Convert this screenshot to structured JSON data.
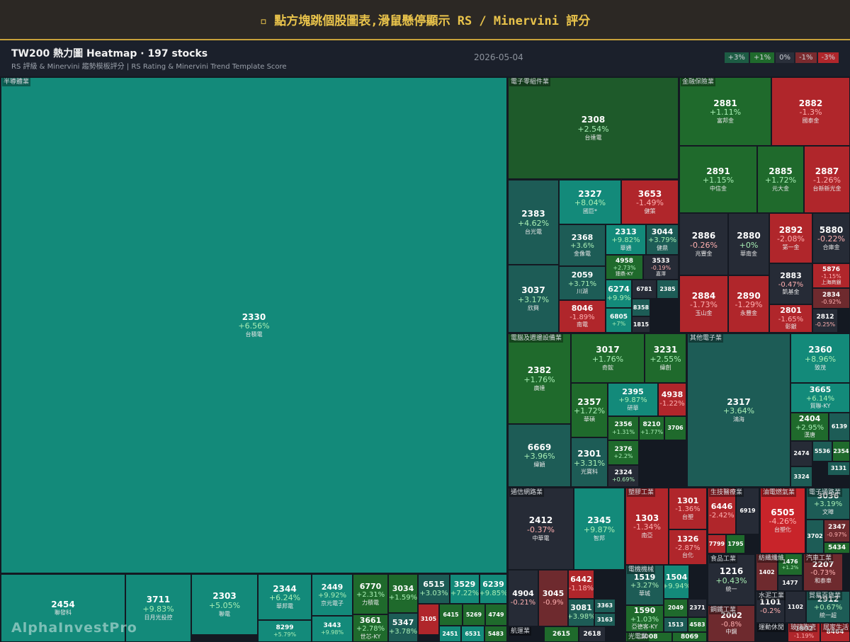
{
  "header": {
    "title": "▫ 點方塊跳個股圖表,滑鼠懸停顯示 RS / Minervini 評分"
  },
  "toolbar": {
    "title": "TW200 熱力圖 Heatmap · 197 stocks",
    "subtitle": "RS 評級 & Minervini 趨勢模板評分 | RS Rating & Minervini Trend Template Score",
    "date": "2026-05-04"
  },
  "legend": [
    {
      "label": "+3%",
      "color": "#1d5c44"
    },
    {
      "label": "+1%",
      "color": "#1f6a2c"
    },
    {
      "label": "0%",
      "color": "#2a2f3a"
    },
    {
      "label": "-1%",
      "color": "#7a2a2e"
    },
    {
      "label": "-3%",
      "color": "#b0262b"
    }
  ],
  "watermark": "AlphaInvestPro",
  "sectors": [
    {
      "name": "半導體業",
      "stocks": [
        {
          "code": "2330",
          "change": "+6.56%",
          "name": "台積電",
          "color": "#138a7a"
        },
        {
          "code": "2454",
          "name": "聯發科",
          "color": "#138a7a"
        },
        {
          "code": "3711",
          "change": "+9.83%",
          "name": "日月光投控",
          "color": "#138a7a"
        },
        {
          "code": "2303",
          "change": "+5.05%",
          "name": "聯電",
          "color": "#138a7a"
        },
        {
          "code": "2344",
          "change": "+6.24%",
          "name": "華邦電",
          "color": "#138a7a"
        },
        {
          "code": "8299",
          "change": "+5.79%",
          "color": "#138a7a"
        },
        {
          "code": "2449",
          "change": "+9.92%",
          "name": "京元電子",
          "color": "#138a7a"
        },
        {
          "code": "3443",
          "change": "+9.98%",
          "color": "#138a7a"
        },
        {
          "code": "6770",
          "change": "+2.31%",
          "name": "力積電",
          "color": "#1f6a2c"
        },
        {
          "code": "3661",
          "change": "+2.78%",
          "name": "世芯-KY",
          "color": "#1f6a2c"
        },
        {
          "code": "3034",
          "change": "+1.59%",
          "color": "#1f6a2c"
        },
        {
          "code": "5347",
          "change": "+3.78%",
          "color": "#1d5c56"
        },
        {
          "code": "6515",
          "change": "+3.03%",
          "color": "#1d5c56"
        },
        {
          "code": "3529",
          "change": "+7.22%",
          "color": "#138a7a"
        },
        {
          "code": "6239",
          "change": "+9.85%",
          "color": "#138a7a"
        },
        {
          "code": "3105",
          "color": "#b0262b"
        },
        {
          "code": "6415",
          "color": "#1f6a2c"
        },
        {
          "code": "5269",
          "color": "#1f6a2c"
        },
        {
          "code": "4749",
          "color": "#1f6a2c"
        },
        {
          "code": "2451",
          "color": "#138a7a"
        },
        {
          "code": "6531",
          "color": "#138a7a"
        },
        {
          "code": "5483",
          "color": "#1f6a2c"
        }
      ]
    },
    {
      "name": "電子零組件業",
      "stocks": [
        {
          "code": "2308",
          "change": "+2.54%",
          "name": "台達電",
          "color": "#1e5a2a"
        },
        {
          "code": "2383",
          "change": "+4.62%",
          "name": "台光電",
          "color": "#1d5c56"
        },
        {
          "code": "3037",
          "change": "+3.17%",
          "name": "欣興",
          "color": "#1d5c56"
        },
        {
          "code": "2327",
          "change": "+8.04%",
          "name": "國巨*",
          "color": "#138a7a"
        },
        {
          "code": "3653",
          "change": "-1.49%",
          "name": "健策",
          "color": "#b0262b"
        },
        {
          "code": "2368",
          "change": "+3.6%",
          "name": "金像電",
          "color": "#1d5c56"
        },
        {
          "code": "2059",
          "change": "+3.71%",
          "name": "川湖",
          "color": "#1d5c56"
        },
        {
          "code": "8046",
          "change": "-1.89%",
          "name": "南電",
          "color": "#b0262b"
        },
        {
          "code": "2313",
          "change": "+9.82%",
          "name": "華通",
          "color": "#138a7a"
        },
        {
          "code": "3044",
          "change": "+3.79%",
          "name": "健鼎",
          "color": "#1d5c56"
        },
        {
          "code": "4958",
          "change": "+2.73%",
          "name": "臻鼎-KY",
          "color": "#1f6a2c"
        },
        {
          "code": "3533",
          "change": "-0.19%",
          "name": "嘉澤",
          "color": "#262b36"
        },
        {
          "code": "6274",
          "change": "+9.9%",
          "color": "#138a7a"
        },
        {
          "code": "6781",
          "color": "#262b36"
        },
        {
          "code": "2385",
          "color": "#1d5c56"
        },
        {
          "code": "8358",
          "color": "#1d5c56"
        },
        {
          "code": "6805",
          "change": "+7%",
          "color": "#138a7a"
        },
        {
          "code": "1815",
          "color": "#262b36"
        }
      ]
    },
    {
      "name": "金融保險業",
      "stocks": [
        {
          "code": "2881",
          "change": "+1.11%",
          "name": "富邦金",
          "color": "#1f6a2c"
        },
        {
          "code": "2882",
          "change": "-1.3%",
          "name": "國泰金",
          "color": "#b0262b"
        },
        {
          "code": "2891",
          "change": "+1.15%",
          "name": "中信金",
          "color": "#1f6a2c"
        },
        {
          "code": "2885",
          "change": "+1.72%",
          "name": "元大金",
          "color": "#1f6a2c"
        },
        {
          "code": "2887",
          "change": "-1.26%",
          "name": "台新新光金",
          "color": "#b0262b"
        },
        {
          "code": "2886",
          "change": "-0.26%",
          "name": "兆豐金",
          "color": "#262b36"
        },
        {
          "code": "2880",
          "change": "+0%",
          "name": "華南金",
          "color": "#262b36"
        },
        {
          "code": "2892",
          "change": "-2.08%",
          "name": "第一金",
          "color": "#b0262b"
        },
        {
          "code": "5880",
          "change": "-0.22%",
          "name": "合庫金",
          "color": "#262b36"
        },
        {
          "code": "5876",
          "change": "-1.15%",
          "name": "上海商銀",
          "color": "#b0262b"
        },
        {
          "code": "2883",
          "change": "-0.47%",
          "name": "凱基金",
          "color": "#262b36"
        },
        {
          "code": "2834",
          "change": "-0.92%",
          "color": "#6e2a2e"
        },
        {
          "code": "2884",
          "change": "-1.73%",
          "name": "玉山金",
          "color": "#b0262b"
        },
        {
          "code": "2890",
          "change": "-1.29%",
          "name": "永豐金",
          "color": "#b0262b"
        },
        {
          "code": "2801",
          "change": "-1.65%",
          "name": "彰銀",
          "color": "#b0262b"
        },
        {
          "code": "2812",
          "change": "-0.25%",
          "color": "#262b36"
        }
      ]
    },
    {
      "name": "電腦及週邊設備業",
      "stocks": [
        {
          "code": "2382",
          "change": "+1.76%",
          "name": "廣達",
          "color": "#1f6a2c"
        },
        {
          "code": "6669",
          "change": "+3.96%",
          "name": "緯穎",
          "color": "#1d5c56"
        },
        {
          "code": "3017",
          "change": "+1.76%",
          "name": "奇鋐",
          "color": "#1f6a2c"
        },
        {
          "code": "3231",
          "change": "+2.55%",
          "name": "緯創",
          "color": "#1f6a2c"
        },
        {
          "code": "2357",
          "change": "+1.72%",
          "name": "華碩",
          "color": "#1f6a2c"
        },
        {
          "code": "2301",
          "change": "+3.31%",
          "name": "光寶科",
          "color": "#1d5c56"
        },
        {
          "code": "2395",
          "change": "+9.87%",
          "name": "研華",
          "color": "#138a7a"
        },
        {
          "code": "4938",
          "change": "-1.22%",
          "color": "#b0262b"
        },
        {
          "code": "2356",
          "change": "+1.31%",
          "color": "#1f6a2c"
        },
        {
          "code": "8210",
          "change": "+1.77%",
          "color": "#1f6a2c"
        },
        {
          "code": "3706",
          "color": "#1f6a2c"
        },
        {
          "code": "2376",
          "change": "+2.2%",
          "color": "#1f6a2c"
        },
        {
          "code": "2324",
          "change": "+0.69%",
          "color": "#262b36"
        }
      ]
    },
    {
      "name": "其他電子業",
      "stocks": [
        {
          "code": "2317",
          "change": "+3.64%",
          "name": "鴻海",
          "color": "#1d5c56"
        },
        {
          "code": "2360",
          "change": "+8.96%",
          "name": "致茂",
          "color": "#138a7a"
        },
        {
          "code": "3665",
          "change": "+6.14%",
          "name": "貿聯-KY",
          "color": "#138a7a"
        },
        {
          "code": "2404",
          "change": "+2.95%",
          "name": "漢唐",
          "color": "#1f6a2c"
        },
        {
          "code": "6139",
          "color": "#1d5c56"
        },
        {
          "code": "2474",
          "color": "#262b36"
        },
        {
          "code": "5536",
          "color": "#1d5c56"
        },
        {
          "code": "2354",
          "color": "#1f6a2c"
        },
        {
          "code": "3131",
          "color": "#1d5c56"
        },
        {
          "code": "3324",
          "color": "#1d5c56"
        }
      ]
    },
    {
      "name": "通信網路業",
      "stocks": [
        {
          "code": "2412",
          "change": "-0.37%",
          "name": "中華電",
          "color": "#262b36"
        },
        {
          "code": "2345",
          "change": "+9.87%",
          "name": "智邦",
          "color": "#138a7a"
        },
        {
          "code": "4904",
          "change": "-0.21%",
          "color": "#262b36"
        },
        {
          "code": "3045",
          "change": "-0.9%",
          "color": "#6e2a2e"
        },
        {
          "code": "6442",
          "change": "-1.18%",
          "color": "#b0262b"
        },
        {
          "code": "3081",
          "change": "+3.98%",
          "color": "#1d5c56"
        },
        {
          "code": "3363",
          "color": "#1d5c56"
        },
        {
          "code": "3163",
          "color": "#1d5c56"
        }
      ]
    },
    {
      "name": "航運業",
      "stocks": [
        {
          "code": "2615",
          "color": "#1f6a2c"
        },
        {
          "code": "2618",
          "color": "#262b36"
        }
      ]
    },
    {
      "name": "塑膠工業",
      "stocks": [
        {
          "code": "1303",
          "change": "-1.34%",
          "name": "南亞",
          "color": "#b0262b"
        },
        {
          "code": "1301",
          "change": "-1.36%",
          "name": "台塑",
          "color": "#b0262b"
        },
        {
          "code": "1326",
          "change": "-2.87%",
          "name": "台化",
          "color": "#b0262b"
        }
      ]
    },
    {
      "name": "電機機械",
      "stocks": [
        {
          "code": "1519",
          "change": "+3.27%",
          "name": "華城",
          "color": "#1d5c56"
        },
        {
          "code": "1504",
          "change": "+9.94%",
          "color": "#138a7a"
        },
        {
          "code": "1590",
          "change": "+1.03%",
          "name": "亞德客-KY",
          "color": "#1f6a2c"
        },
        {
          "code": "2049",
          "color": "#1f6a2c"
        },
        {
          "code": "2371",
          "color": "#262b36"
        },
        {
          "code": "1513",
          "color": "#1d5c56"
        },
        {
          "code": "4583",
          "color": "#1f6a2c"
        }
      ]
    },
    {
      "name": "光電業",
      "stocks": [
        {
          "code": "3008",
          "color": "#1f6a2c"
        },
        {
          "code": "8069",
          "color": "#1f6a2c"
        }
      ]
    },
    {
      "name": "生技醫療業",
      "stocks": [
        {
          "code": "6446",
          "change": "-2.42%",
          "color": "#b0262b"
        },
        {
          "code": "6919",
          "color": "#262b36"
        },
        {
          "code": "7799",
          "color": "#b0262b"
        },
        {
          "code": "1795",
          "color": "#1f6a2c"
        }
      ]
    },
    {
      "name": "食品工業",
      "stocks": [
        {
          "code": "1216",
          "change": "+0.43%",
          "name": "統一",
          "color": "#262b36"
        }
      ]
    },
    {
      "name": "鋼鐵工業",
      "stocks": [
        {
          "code": "2002",
          "change": "-0.8%",
          "name": "中鋼",
          "color": "#6e2a2e"
        }
      ]
    },
    {
      "name": "油電燃氣業",
      "stocks": [
        {
          "code": "6505",
          "change": "-4.26%",
          "name": "台塑化",
          "color": "#c8242a"
        }
      ]
    },
    {
      "name": "紡織纖維",
      "stocks": [
        {
          "code": "1402",
          "color": "#6e2a2e"
        },
        {
          "code": "1476",
          "change": "+1.2%",
          "color": "#1f6a2c"
        },
        {
          "code": "1477",
          "color": "#262b36"
        }
      ]
    },
    {
      "name": "汽車工業",
      "stocks": [
        {
          "code": "2207",
          "change": "-0.73%",
          "name": "和泰車",
          "color": "#6e2a2e"
        }
      ]
    },
    {
      "name": "水泥工業",
      "stocks": [
        {
          "code": "1101",
          "change": "-0.2%",
          "color": "#262b36"
        },
        {
          "code": "1102",
          "color": "#262b36"
        }
      ]
    },
    {
      "name": "貿易百貨業",
      "stocks": [
        {
          "code": "2912",
          "change": "+0.67%",
          "name": "統一超",
          "color": "#1d5c56"
        }
      ]
    },
    {
      "name": "電子通路業",
      "stocks": [
        {
          "code": "3036",
          "change": "+3.19%",
          "name": "文曄",
          "color": "#1d5c56"
        },
        {
          "code": "3702",
          "color": "#1d5c56"
        },
        {
          "code": "2347",
          "change": "-0.97%",
          "color": "#6e2a2e"
        },
        {
          "code": "5434",
          "color": "#1f6a2c"
        }
      ]
    },
    {
      "name": "運動休閒",
      "stocks": []
    },
    {
      "name": "玻璃陶瓷",
      "stocks": [
        {
          "code": "1802",
          "change": "-1.19%",
          "color": "#b0262b"
        }
      ]
    },
    {
      "name": "居家生活",
      "stocks": [
        {
          "code": "8464",
          "color": "#b0262b"
        }
      ]
    }
  ]
}
